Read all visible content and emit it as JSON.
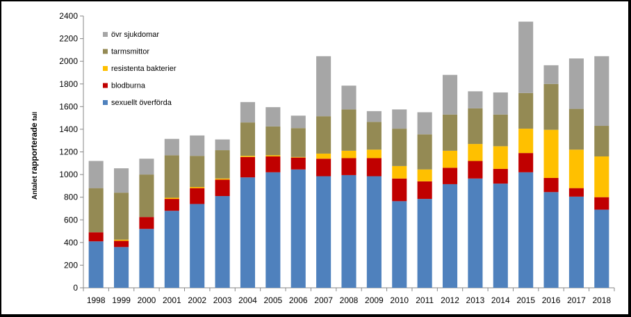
{
  "chart_data": {
    "type": "bar",
    "stacked": true,
    "title": "",
    "xlabel": "",
    "ylabel": "Antalet rapporterade fall",
    "ylabel_parts": [
      "Antalet ",
      "rapporterade",
      " fall"
    ],
    "ylim": [
      0,
      2400
    ],
    "ytick_step": 200,
    "categories": [
      "1998",
      "1999",
      "2000",
      "2001",
      "2002",
      "2003",
      "2004",
      "2005",
      "2006",
      "2007",
      "2008",
      "2009",
      "2010",
      "2011",
      "2012",
      "2013",
      "2014",
      "2015",
      "2016",
      "2017",
      "2018"
    ],
    "series": [
      {
        "name": "sexuellt överförda",
        "color": "#4F81BD",
        "values": [
          410,
          360,
          520,
          680,
          740,
          810,
          975,
          1020,
          1045,
          985,
          995,
          985,
          765,
          785,
          915,
          965,
          920,
          1020,
          845,
          805,
          690
        ]
      },
      {
        "name": "blodburna",
        "color": "#C00000",
        "values": [
          80,
          55,
          105,
          105,
          140,
          145,
          180,
          140,
          105,
          155,
          150,
          160,
          200,
          155,
          145,
          155,
          130,
          170,
          125,
          75,
          110
        ]
      },
      {
        "name": "resistenta bakterier",
        "color": "#FFC000",
        "values": [
          0,
          10,
          0,
          10,
          10,
          10,
          10,
          10,
          5,
          45,
          65,
          75,
          110,
          105,
          150,
          150,
          200,
          215,
          425,
          340,
          360
        ]
      },
      {
        "name": "tarmsmittor",
        "color": "#948A54",
        "values": [
          390,
          415,
          375,
          375,
          275,
          250,
          295,
          255,
          255,
          330,
          365,
          245,
          330,
          310,
          320,
          315,
          280,
          315,
          405,
          360,
          270
        ]
      },
      {
        "name": "övr sjukdomar",
        "color": "#A6A6A6",
        "values": [
          240,
          215,
          140,
          145,
          180,
          95,
          180,
          170,
          110,
          530,
          210,
          95,
          170,
          195,
          350,
          150,
          195,
          630,
          165,
          445,
          615
        ]
      }
    ],
    "legend_order": [
      "övr sjukdomar",
      "tarmsmittor",
      "resistenta bakterier",
      "blodburna",
      "sexuellt överförda"
    ],
    "legend_position": "top-left",
    "grid": false
  }
}
